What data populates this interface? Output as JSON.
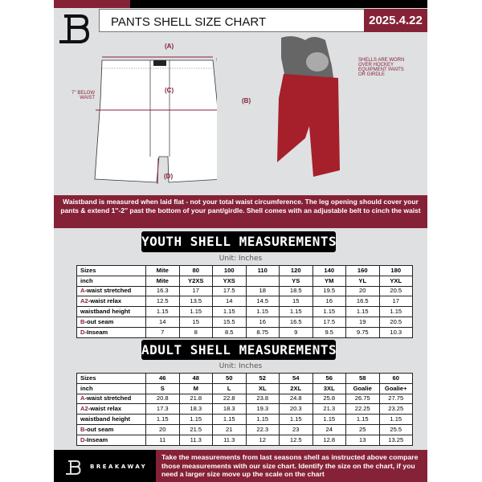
{
  "header": {
    "title": "PANTS SHELL SIZE CHART",
    "date": "2025.4.22"
  },
  "diagram": {
    "label_a": "(A)",
    "label_b": "(B)",
    "label_c": "(C)",
    "label_d": "(D)",
    "below_waist": "7'' BELOW WAIST",
    "note": "SHELLS ARE WORN OVER HOCKEY EQUIPMENT PANTS OR GIRDLE"
  },
  "info_band": "Waistband is measured when laid flat - not your total waist circumference. The leg opening should cover your pants & extend 1''-2'' past the bottom of your pant/girdle. Shell comes with an adjustable belt to cinch the waist",
  "youth": {
    "title": "YOUTH SHELL MEASUREMENTS",
    "unit": "Unit: Inches",
    "rows": [
      {
        "prefix": "",
        "label": "Sizes",
        "cells": [
          "Mite",
          "80",
          "100",
          "110",
          "120",
          "140",
          "160",
          "180"
        ]
      },
      {
        "prefix": "",
        "label": "inch",
        "cells": [
          "Mite",
          "Y2XS",
          "YXS",
          "",
          "YS",
          "YM",
          "YL",
          "YXL"
        ]
      },
      {
        "prefix": "A",
        "label": "-waist stretched",
        "cells": [
          "16.3",
          "17",
          "17.5",
          "18",
          "18.5",
          "19.5",
          "20",
          "20.5"
        ]
      },
      {
        "prefix": "A2",
        "label": "-waist relax",
        "cells": [
          "12.5",
          "13.5",
          "14",
          "14.5",
          "15",
          "16",
          "16.5",
          "17"
        ]
      },
      {
        "prefix": "",
        "label": "waistband height",
        "cells": [
          "1.15",
          "1.15",
          "1.15",
          "1.15",
          "1.15",
          "1.15",
          "1.15",
          "1.15"
        ]
      },
      {
        "prefix": "B",
        "label": "-out seam",
        "cells": [
          "14",
          "15",
          "15.5",
          "16",
          "16.5",
          "17.5",
          "19",
          "20.5"
        ]
      },
      {
        "prefix": "D",
        "label": "-Inseam",
        "cells": [
          "7",
          "8",
          "8.5",
          "8.75",
          "9",
          "9.5",
          "9.75",
          "10.3"
        ]
      }
    ]
  },
  "adult": {
    "title": "ADULT SHELL MEASUREMENTS",
    "unit": "Unit: Inches",
    "rows": [
      {
        "prefix": "",
        "label": "Sizes",
        "cells": [
          "46",
          "48",
          "50",
          "52",
          "54",
          "56",
          "58",
          "60"
        ]
      },
      {
        "prefix": "",
        "label": "inch",
        "cells": [
          "S",
          "M",
          "L",
          "XL",
          "2XL",
          "3XL",
          "Goalie",
          "Goalie+"
        ]
      },
      {
        "prefix": "A",
        "label": "-waist stretched",
        "cells": [
          "20.8",
          "21.8",
          "22.8",
          "23.8",
          "24.8",
          "25.8",
          "26.75",
          "27.75"
        ]
      },
      {
        "prefix": "A2",
        "label": "-waist relax",
        "cells": [
          "17.3",
          "18.3",
          "18.3",
          "19.3",
          "20.3",
          "21.3",
          "22.25",
          "23.25"
        ]
      },
      {
        "prefix": "",
        "label": "waistband height",
        "cells": [
          "1.15",
          "1.15",
          "1.15",
          "1.15",
          "1.15",
          "1.15",
          "1.15",
          "1.15"
        ]
      },
      {
        "prefix": "B",
        "label": "-out seam",
        "cells": [
          "20",
          "21.5",
          "21",
          "22.3",
          "23",
          "24",
          "25",
          "25.5"
        ]
      },
      {
        "prefix": "D",
        "label": "-Inseam",
        "cells": [
          "11",
          "11.3",
          "11.3",
          "12",
          "12.5",
          "12.8",
          "13",
          "13.25"
        ]
      }
    ]
  },
  "footer": {
    "brand": "BREAKAWAY",
    "text": "Take the measurements from last seasons shell as instructed above compare those measurements  with our size chart. Identify the size on the chart, if you need a larger size move up the scale on the chart"
  },
  "colors": {
    "accent": "#862238",
    "background": "#dfe0e2"
  }
}
